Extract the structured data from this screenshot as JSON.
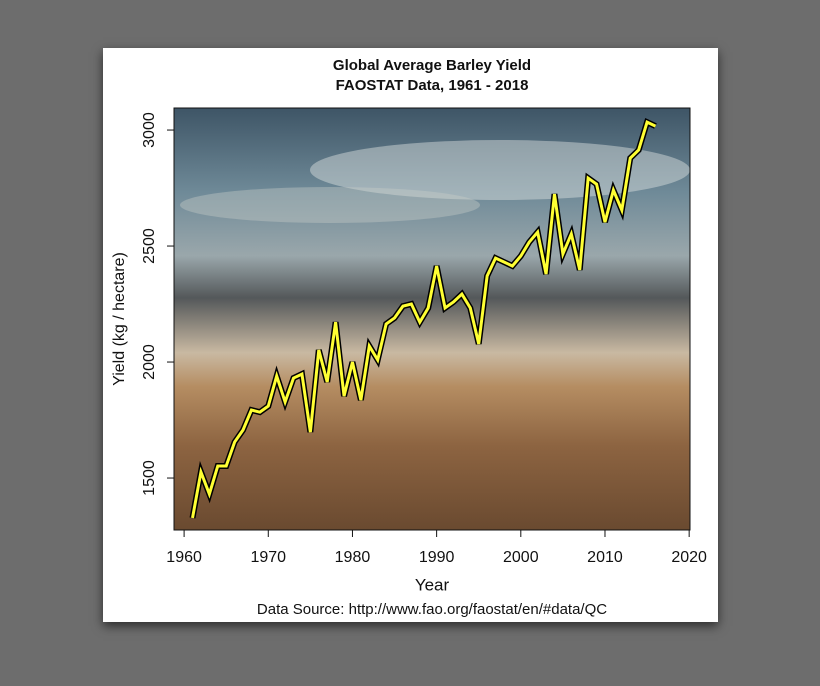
{
  "chart_data": {
    "type": "line",
    "title": "Global Average Barley Yield",
    "subtitle": "FAOSTAT Data, 1961 - 2018",
    "x_label": "Year",
    "y_label": "Yield (kg / hectare)",
    "annotation": "Data Source: http://www.fao.org/faostat/en/#data/QC",
    "x": [
      1961,
      1962,
      1963,
      1964,
      1965,
      1966,
      1967,
      1968,
      1969,
      1970,
      1971,
      1972,
      1973,
      1974,
      1975,
      1976,
      1977,
      1978,
      1979,
      1980,
      1981,
      1982,
      1983,
      1984,
      1985,
      1986,
      1987,
      1988,
      1989,
      1990,
      1991,
      1992,
      1993,
      1994,
      1995,
      1996,
      1997,
      1998,
      1999,
      2000,
      2001,
      2002,
      2003,
      2004,
      2005,
      2006,
      2007,
      2008,
      2009,
      2010,
      2011,
      2012,
      2013,
      2014,
      2015,
      2016
    ],
    "series": [
      {
        "name": "Barley yield",
        "color": "#ffff33",
        "values": [
          1328,
          1526,
          1431,
          1552,
          1552,
          1655,
          1707,
          1793,
          1784,
          1810,
          1940,
          1828,
          1931,
          1948,
          1698,
          2052,
          1914,
          2172,
          1853,
          2000,
          1836,
          2069,
          2009,
          2164,
          2190,
          2241,
          2250,
          2172,
          2233,
          2414,
          2233,
          2259,
          2293,
          2233,
          2078,
          2371,
          2448,
          2431,
          2414,
          2457,
          2517,
          2560,
          2379,
          2724,
          2466,
          2552,
          2397,
          2793,
          2767,
          2603,
          2741,
          2655,
          2879,
          2914,
          3034,
          3017
        ]
      }
    ],
    "xlim": [
      1958.8,
      2020.1
    ],
    "xticks": [
      1960,
      1970,
      1980,
      1990,
      2000,
      2010,
      2020
    ],
    "ylim": [
      1276,
      3095
    ],
    "yticks": [
      1500,
      2000,
      2500,
      3000
    ]
  }
}
